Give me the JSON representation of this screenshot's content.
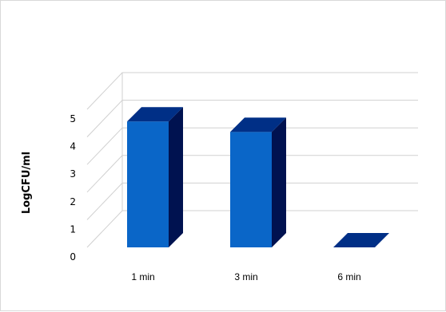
{
  "chart_data": {
    "type": "bar",
    "style": "3d-column",
    "categories": [
      "1 min",
      "3 min",
      "6 min"
    ],
    "values": [
      4.56,
      4.18,
      0
    ],
    "ylabel": "LogCFU/ml",
    "xlabel": "",
    "ylim": [
      0,
      5
    ],
    "yticks": [
      "0",
      "1",
      "2",
      "3",
      "4",
      "5"
    ],
    "grid": true,
    "legend": "none",
    "colors": {
      "front": "#0A66C8",
      "top": "#002F86",
      "side": "#001250",
      "gridline": "#D0D0D0"
    }
  }
}
